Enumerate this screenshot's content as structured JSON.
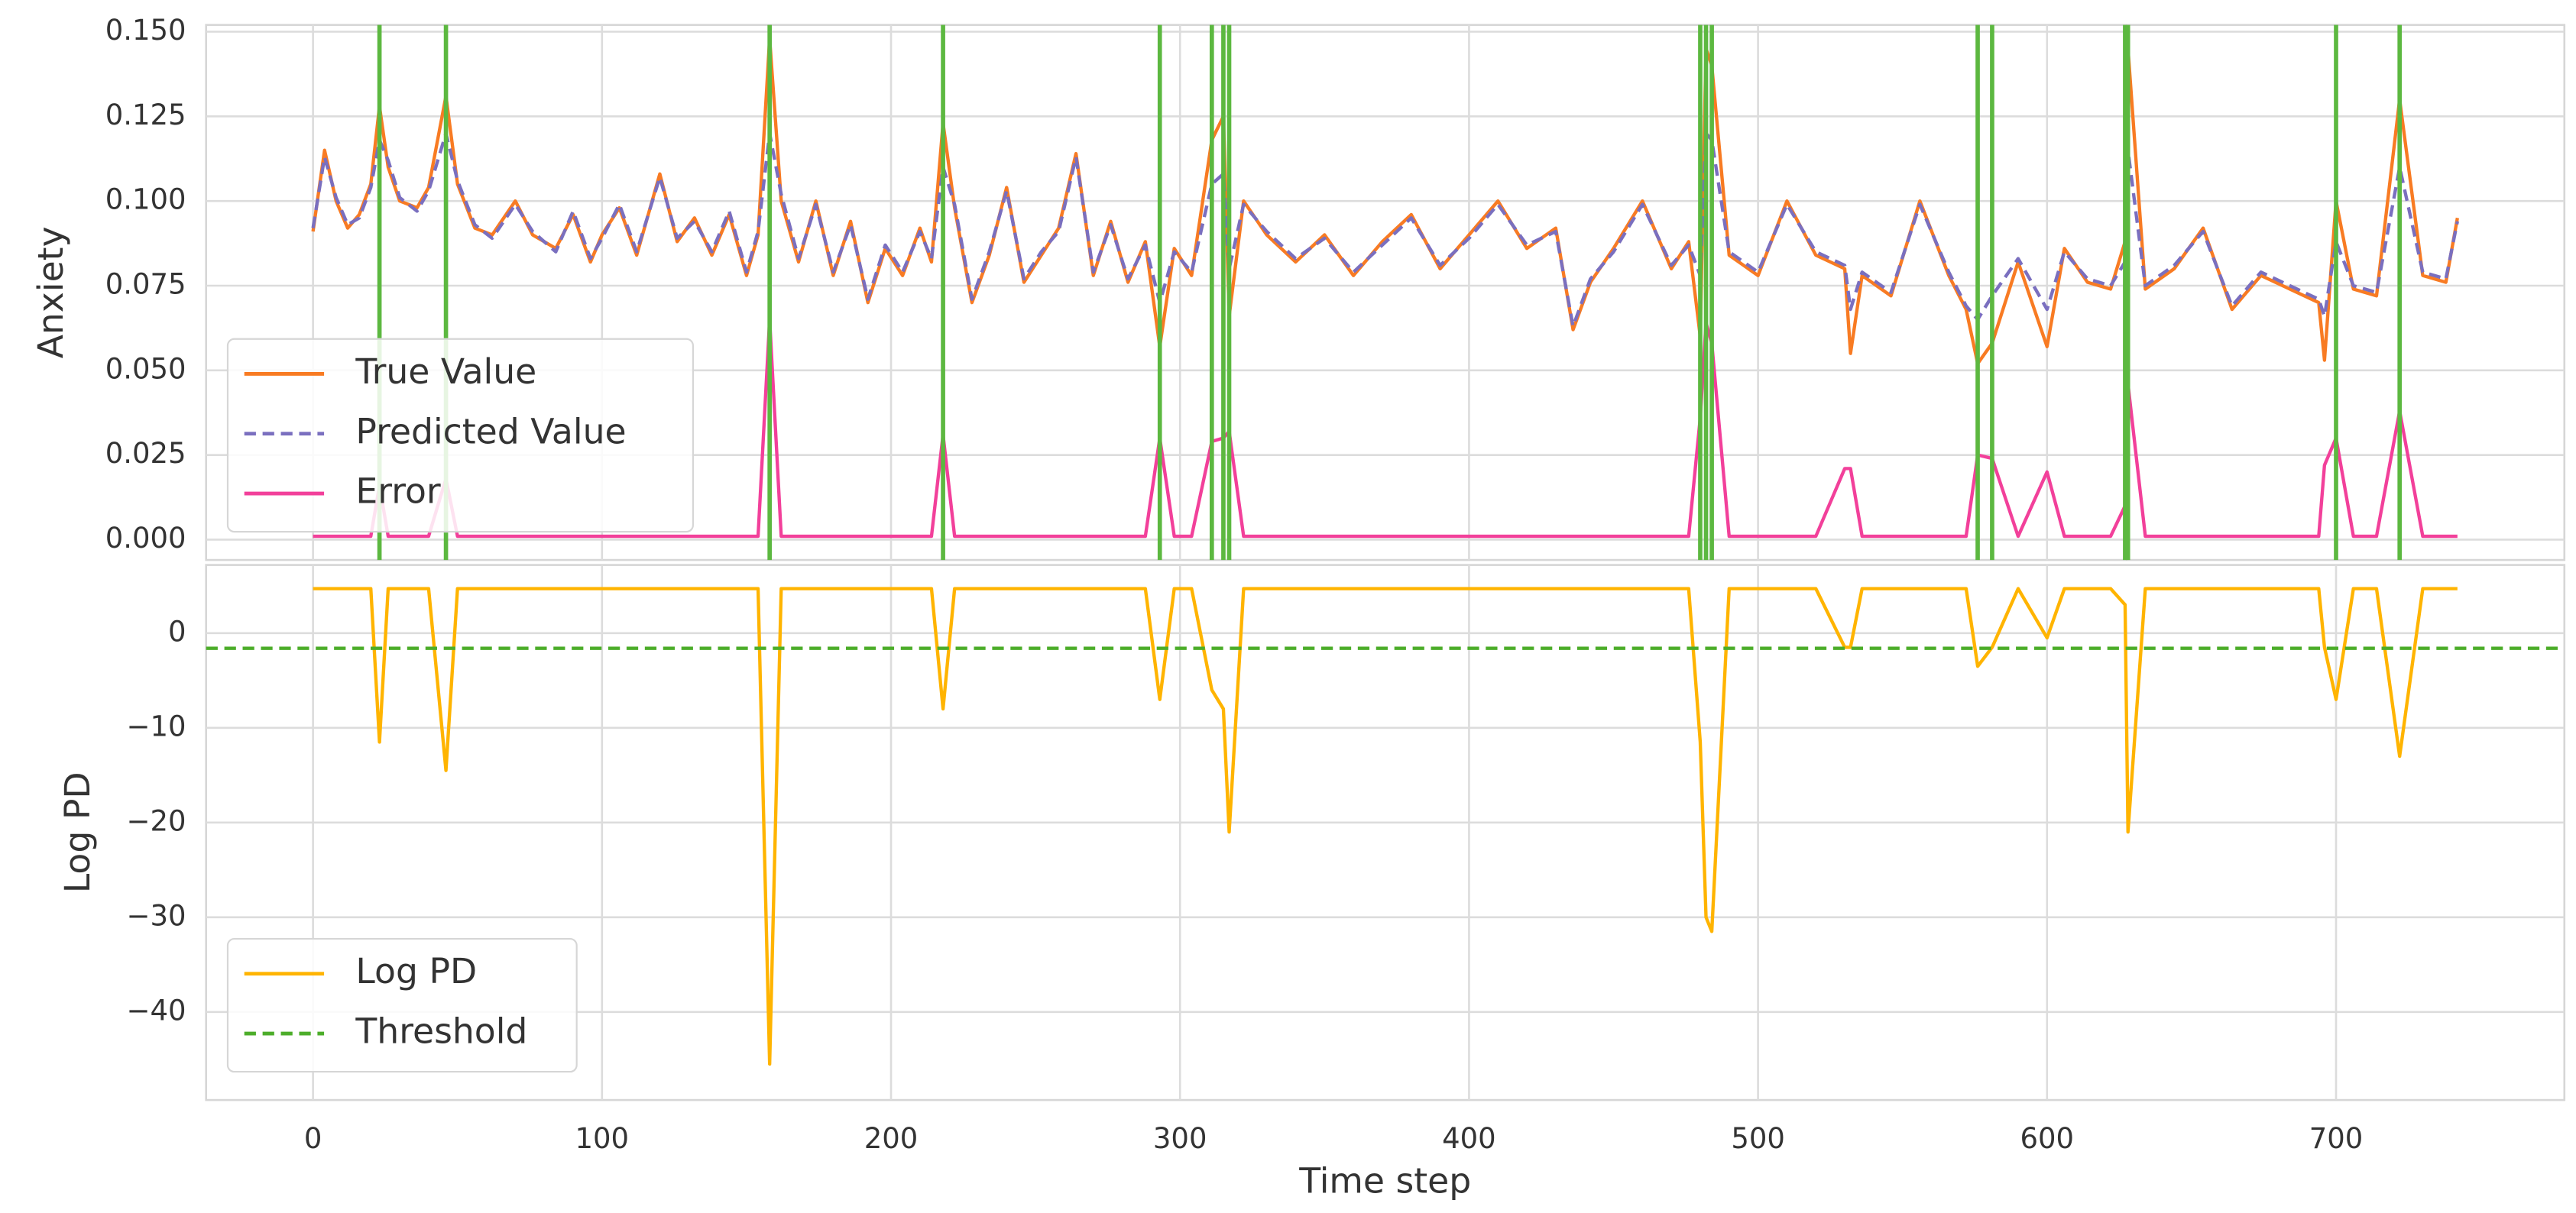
{
  "chart_data": [
    {
      "type": "line",
      "ylabel": "Anxiety",
      "x": [
        0,
        4,
        8,
        12,
        16,
        20,
        23,
        26,
        30,
        36,
        40,
        46,
        50,
        56,
        62,
        70,
        76,
        84,
        90,
        96,
        100,
        106,
        112,
        120,
        126,
        132,
        138,
        144,
        150,
        154,
        158,
        162,
        168,
        174,
        180,
        186,
        192,
        198,
        204,
        210,
        214,
        218,
        222,
        228,
        234,
        240,
        246,
        252,
        258,
        264,
        270,
        276,
        282,
        288,
        293,
        298,
        304,
        311,
        315,
        317,
        322,
        330,
        340,
        350,
        360,
        370,
        380,
        390,
        400,
        410,
        420,
        430,
        436,
        442,
        450,
        460,
        470,
        476,
        480,
        482,
        484,
        490,
        500,
        510,
        520,
        530,
        532,
        536,
        546,
        556,
        566,
        572,
        576,
        581,
        590,
        600,
        606,
        614,
        622,
        627,
        628,
        634,
        644,
        654,
        664,
        674,
        684,
        694,
        696,
        700,
        706,
        714,
        722,
        730,
        738,
        742
      ],
      "series": [
        {
          "name": "True Value",
          "color": "#f87b23",
          "dash": false,
          "values": [
            0.091,
            0.115,
            0.1,
            0.092,
            0.096,
            0.105,
            0.128,
            0.11,
            0.1,
            0.098,
            0.104,
            0.131,
            0.105,
            0.092,
            0.09,
            0.1,
            0.09,
            0.086,
            0.096,
            0.082,
            0.09,
            0.098,
            0.084,
            0.108,
            0.088,
            0.095,
            0.084,
            0.096,
            0.078,
            0.09,
            0.148,
            0.1,
            0.082,
            0.1,
            0.078,
            0.094,
            0.07,
            0.086,
            0.078,
            0.092,
            0.082,
            0.123,
            0.098,
            0.07,
            0.084,
            0.104,
            0.076,
            0.084,
            0.092,
            0.114,
            0.078,
            0.094,
            0.076,
            0.088,
            0.057,
            0.086,
            0.078,
            0.118,
            0.125,
            0.066,
            0.1,
            0.09,
            0.082,
            0.09,
            0.078,
            0.088,
            0.096,
            0.08,
            0.09,
            0.1,
            0.086,
            0.092,
            0.062,
            0.076,
            0.086,
            0.1,
            0.08,
            0.088,
            0.06,
            0.145,
            0.14,
            0.084,
            0.078,
            0.1,
            0.084,
            0.08,
            0.055,
            0.078,
            0.072,
            0.1,
            0.078,
            0.068,
            0.052,
            0.058,
            0.082,
            0.057,
            0.086,
            0.076,
            0.074,
            0.088,
            0.145,
            0.074,
            0.08,
            0.092,
            0.068,
            0.078,
            0.074,
            0.07,
            0.053,
            0.1,
            0.074,
            0.072,
            0.13,
            0.078,
            0.076,
            0.095
          ]
        },
        {
          "name": "Predicted Value",
          "color": "#7a6fbf",
          "dash": true,
          "values": [
            0.092,
            0.113,
            0.101,
            0.093,
            0.095,
            0.104,
            0.118,
            0.112,
            0.101,
            0.097,
            0.103,
            0.12,
            0.106,
            0.093,
            0.089,
            0.099,
            0.091,
            0.085,
            0.097,
            0.083,
            0.089,
            0.099,
            0.085,
            0.107,
            0.089,
            0.094,
            0.085,
            0.097,
            0.079,
            0.091,
            0.12,
            0.102,
            0.083,
            0.099,
            0.079,
            0.093,
            0.071,
            0.087,
            0.079,
            0.091,
            0.083,
            0.11,
            0.099,
            0.071,
            0.085,
            0.103,
            0.077,
            0.085,
            0.091,
            0.113,
            0.079,
            0.093,
            0.077,
            0.087,
            0.07,
            0.085,
            0.079,
            0.105,
            0.108,
            0.08,
            0.099,
            0.091,
            0.083,
            0.089,
            0.079,
            0.087,
            0.095,
            0.081,
            0.089,
            0.099,
            0.087,
            0.091,
            0.063,
            0.077,
            0.085,
            0.099,
            0.081,
            0.087,
            0.078,
            0.12,
            0.118,
            0.085,
            0.079,
            0.099,
            0.085,
            0.081,
            0.068,
            0.079,
            0.073,
            0.099,
            0.079,
            0.069,
            0.065,
            0.072,
            0.083,
            0.068,
            0.085,
            0.077,
            0.075,
            0.082,
            0.115,
            0.075,
            0.081,
            0.091,
            0.069,
            0.079,
            0.075,
            0.071,
            0.066,
            0.088,
            0.075,
            0.073,
            0.11,
            0.079,
            0.077,
            0.094
          ]
        },
        {
          "name": "Error",
          "color": "#f2409a",
          "dash": false,
          "values": [
            0.001,
            0.001,
            0.001,
            0.001,
            0.001,
            0.001,
            0.016,
            0.001,
            0.001,
            0.001,
            0.001,
            0.018,
            0.001,
            0.001,
            0.001,
            0.001,
            0.001,
            0.001,
            0.001,
            0.001,
            0.001,
            0.001,
            0.001,
            0.001,
            0.001,
            0.001,
            0.001,
            0.001,
            0.001,
            0.001,
            0.065,
            0.001,
            0.001,
            0.001,
            0.001,
            0.001,
            0.001,
            0.001,
            0.001,
            0.001,
            0.001,
            0.031,
            0.001,
            0.001,
            0.001,
            0.001,
            0.001,
            0.001,
            0.001,
            0.001,
            0.001,
            0.001,
            0.001,
            0.001,
            0.03,
            0.001,
            0.001,
            0.029,
            0.03,
            0.032,
            0.001,
            0.001,
            0.001,
            0.001,
            0.001,
            0.001,
            0.001,
            0.001,
            0.001,
            0.001,
            0.001,
            0.001,
            0.001,
            0.001,
            0.001,
            0.001,
            0.001,
            0.001,
            0.036,
            0.064,
            0.058,
            0.001,
            0.001,
            0.001,
            0.001,
            0.021,
            0.021,
            0.001,
            0.001,
            0.001,
            0.001,
            0.001,
            0.025,
            0.024,
            0.001,
            0.02,
            0.001,
            0.001,
            0.001,
            0.01,
            0.046,
            0.001,
            0.001,
            0.001,
            0.001,
            0.001,
            0.001,
            0.001,
            0.022,
            0.03,
            0.001,
            0.001,
            0.038,
            0.001,
            0.001,
            0.001
          ]
        }
      ],
      "vlines": [
        23,
        46,
        158,
        218,
        293,
        311,
        315,
        317,
        480,
        482,
        484,
        576,
        581,
        627,
        628,
        700,
        722
      ],
      "vline_color": "#5cb840",
      "xlim": [
        -37,
        779
      ],
      "xticks": [
        0,
        100,
        200,
        300,
        400,
        500,
        600,
        700
      ],
      "show_xticklabels": false,
      "ylim": [
        -0.006,
        0.152
      ],
      "yticks": [
        {
          "value": 0,
          "label": "0.000"
        },
        {
          "value": 0.025,
          "label": "0.025"
        },
        {
          "value": 0.05,
          "label": "0.050"
        },
        {
          "value": 0.075,
          "label": "0.075"
        },
        {
          "value": 0.1,
          "label": "0.100"
        },
        {
          "value": 0.125,
          "label": "0.125"
        },
        {
          "value": 0.15,
          "label": "0.150"
        }
      ],
      "grid": true,
      "legend": "lower left"
    },
    {
      "type": "line",
      "ylabel": "Log PD",
      "xlabel": "Time step",
      "x": [
        0,
        4,
        8,
        12,
        16,
        20,
        23,
        26,
        30,
        36,
        40,
        46,
        50,
        56,
        62,
        70,
        76,
        84,
        90,
        96,
        100,
        106,
        112,
        120,
        126,
        132,
        138,
        144,
        150,
        154,
        158,
        162,
        168,
        174,
        180,
        186,
        192,
        198,
        204,
        210,
        214,
        218,
        222,
        228,
        234,
        240,
        246,
        252,
        258,
        264,
        270,
        276,
        282,
        288,
        293,
        298,
        304,
        311,
        315,
        317,
        322,
        330,
        340,
        350,
        360,
        370,
        380,
        390,
        400,
        410,
        420,
        430,
        436,
        442,
        450,
        460,
        470,
        476,
        480,
        482,
        484,
        490,
        500,
        510,
        520,
        530,
        532,
        536,
        546,
        556,
        566,
        572,
        576,
        581,
        590,
        600,
        606,
        614,
        622,
        627,
        628,
        634,
        644,
        654,
        664,
        674,
        684,
        694,
        696,
        700,
        706,
        714,
        722,
        730,
        738,
        742
      ],
      "series": [
        {
          "name": "Log PD",
          "color": "#ffb400",
          "dash": false,
          "values": [
            4.7,
            4.7,
            4.7,
            4.7,
            4.7,
            4.7,
            -11.5,
            4.7,
            4.7,
            4.7,
            4.7,
            -14.5,
            4.7,
            4.7,
            4.7,
            4.7,
            4.7,
            4.7,
            4.7,
            4.7,
            4.7,
            4.7,
            4.7,
            4.7,
            4.7,
            4.7,
            4.7,
            4.7,
            4.7,
            4.7,
            -45.5,
            4.7,
            4.7,
            4.7,
            4.7,
            4.7,
            4.7,
            4.7,
            4.7,
            4.7,
            4.7,
            -8,
            4.7,
            4.7,
            4.7,
            4.7,
            4.7,
            4.7,
            4.7,
            4.7,
            4.7,
            4.7,
            4.7,
            4.7,
            -7,
            4.7,
            4.7,
            -6,
            -8,
            -21,
            4.7,
            4.7,
            4.7,
            4.7,
            4.7,
            4.7,
            4.7,
            4.7,
            4.7,
            4.7,
            4.7,
            4.7,
            4.7,
            4.7,
            4.7,
            4.7,
            4.7,
            4.7,
            -11.5,
            -30,
            -31.5,
            4.7,
            4.7,
            4.7,
            4.7,
            -1.5,
            -1.5,
            4.7,
            4.7,
            4.7,
            4.7,
            4.7,
            -3.5,
            -1.5,
            4.7,
            -0.5,
            4.7,
            4.7,
            4.7,
            3,
            -21,
            4.7,
            4.7,
            4.7,
            4.7,
            4.7,
            4.7,
            4.7,
            -1.5,
            -7,
            4.7,
            4.7,
            -13,
            4.7,
            4.7,
            4.7
          ]
        }
      ],
      "hlines": [
        {
          "name": "Threshold",
          "value": -1.6,
          "color": "#4cad2a",
          "dash": true
        }
      ],
      "xlim": [
        -37,
        779
      ],
      "xticks": [
        0,
        100,
        200,
        300,
        400,
        500,
        600,
        700
      ],
      "ylim": [
        -49.3,
        7.2
      ],
      "yticks": [
        {
          "value": -40,
          "label": "−40"
        },
        {
          "value": -30,
          "label": "−30"
        },
        {
          "value": -20,
          "label": "−20"
        },
        {
          "value": -10,
          "label": "−10"
        },
        0
      ],
      "grid": true,
      "legend": "lower left"
    }
  ]
}
